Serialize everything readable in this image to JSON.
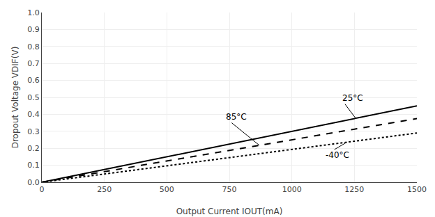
{
  "chart_data": {
    "type": "line",
    "x_label": "Output Current IOUT(mA)",
    "y_label": "Dropout Voltage VDIF(V)",
    "x": [
      0,
      1500
    ],
    "series": [
      {
        "values": [
          0,
          0.45
        ],
        "color": "#000000",
        "line_style": "solid"
      },
      {
        "values": [
          0,
          0.375
        ],
        "color": "#000000",
        "line_style": "dashed"
      },
      {
        "values": [
          0,
          0.29
        ],
        "color": "#000000",
        "line_style": "dotted"
      }
    ],
    "annotations": [
      {
        "text": "25°C",
        "x": 1255,
        "y": 0.377,
        "text_x": 1195,
        "text_y": 0.495
      },
      {
        "text": "85°C",
        "x": 870,
        "y": 0.2175,
        "text_x": 730,
        "text_y": 0.385
      },
      {
        "text": "-40°C",
        "x": 1220,
        "y": 0.236,
        "text_x": 1130,
        "text_y": 0.158
      }
    ],
    "xlim": [
      0,
      1500
    ],
    "ylim": [
      0,
      1.0
    ],
    "xticks": [
      0,
      250,
      500,
      750,
      1000,
      1250,
      1500
    ],
    "yticks": [
      {
        "value": 0,
        "label": "0.0"
      },
      0.1,
      0.2,
      0.3,
      0.4,
      0.5,
      0.6,
      0.7,
      0.8,
      0.9,
      {
        "value": 1,
        "label": "1.0"
      }
    ],
    "grid": true
  }
}
